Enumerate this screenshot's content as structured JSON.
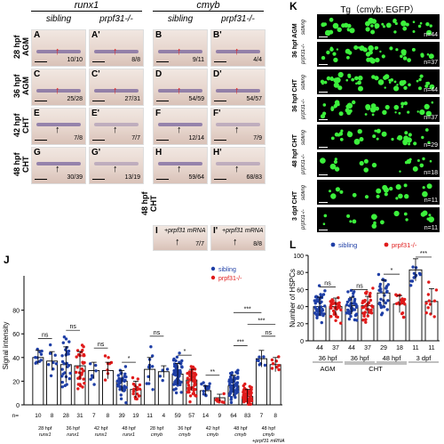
{
  "figure_letters": {
    "J": "J",
    "K": "K",
    "L": "L"
  },
  "top": {
    "gene_headers": [
      {
        "label": "runx1"
      },
      {
        "label": "cmyb"
      }
    ],
    "col_headers": [
      "sibling",
      "prpf31-/-",
      "sibling",
      "prpf31-/-"
    ],
    "row_labels": [
      "28 hpf AGM",
      "36 hpf AGM",
      "42 hpf CHT",
      "48 hpf CHT",
      "48 hpf CHT"
    ],
    "panels": [
      {
        "letter": "A",
        "count": "10/10",
        "arrow": "red"
      },
      {
        "letter": "A'",
        "count": "8/8",
        "arrow": "red"
      },
      {
        "letter": "B",
        "count": "9/11",
        "arrow": "red"
      },
      {
        "letter": "B'",
        "count": "4/4",
        "arrow": "red"
      },
      {
        "letter": "C",
        "count": "25/28",
        "arrow": "red"
      },
      {
        "letter": "C'",
        "count": "27/31",
        "arrow": "red"
      },
      {
        "letter": "D",
        "count": "54/59",
        "arrow": "red"
      },
      {
        "letter": "D'",
        "count": "54/57",
        "arrow": "red"
      },
      {
        "letter": "E",
        "count": "7/8",
        "arrow": "black"
      },
      {
        "letter": "E'",
        "count": "7/7",
        "arrow": "black"
      },
      {
        "letter": "F",
        "count": "12/14",
        "arrow": "black"
      },
      {
        "letter": "F'",
        "count": "7/9",
        "arrow": "black"
      },
      {
        "letter": "G",
        "count": "30/39",
        "arrow": "black"
      },
      {
        "letter": "G'",
        "count": "13/19",
        "arrow": "black"
      },
      {
        "letter": "H",
        "count": "59/64",
        "arrow": "black"
      },
      {
        "letter": "H'",
        "count": "68/83",
        "arrow": "black"
      }
    ],
    "rescue_panels": [
      {
        "letter": "I",
        "label": "+prpf31 mRNA",
        "count": "7/7"
      },
      {
        "letter": "I'",
        "label": "+prpf31 mRNA",
        "count": "8/8"
      }
    ]
  },
  "k_panel": {
    "title": "Tg（cmyb: EGFP）",
    "groups": [
      "36 hpf AGM",
      "36 hpf CHT",
      "48 hpf CHT",
      "3 dpf CHT"
    ],
    "genotypes": [
      "sibling",
      "prpf31-/-"
    ],
    "counts": [
      "n=44",
      "n=37",
      "n=44",
      "n=37",
      "n=29",
      "n=18",
      "n=11",
      "n=11"
    ]
  },
  "colors": {
    "sibling": "#1f3fa6",
    "mutant": "#e01b1b",
    "bar": "#000000"
  },
  "chart_data": [
    {
      "id": "J",
      "type": "bar",
      "ylabel": "Signal intensity",
      "ylim": [
        0,
        100
      ],
      "yticks": [
        0,
        20,
        40,
        60,
        80
      ],
      "legend": [
        {
          "name": "sibling",
          "color": "#1f3fa6"
        },
        {
          "name": "prpf31-/-",
          "color": "#e01b1b"
        }
      ],
      "legend_position": "top-right",
      "n_prefix": "n=",
      "groups": [
        {
          "label": "28 hpf runx1",
          "n": 10,
          "mean": 40,
          "sd": 6,
          "color": "sib"
        },
        {
          "label": "28 hpf runx1",
          "n": 8,
          "mean": 37,
          "sd": 8,
          "color": "sib"
        },
        {
          "label": "36 hpf runx1",
          "n": 28,
          "mean": 34,
          "sd": 15,
          "color": "sib"
        },
        {
          "label": "36 hpf runx1",
          "n": 31,
          "mean": 33,
          "sd": 12,
          "color": "mut"
        },
        {
          "label": "42 hpf runx1",
          "n": 7,
          "mean": 29,
          "sd": 7,
          "color": "sib"
        },
        {
          "label": "42 hpf runx1",
          "n": 8,
          "mean": 29,
          "sd": 7,
          "color": "mut"
        },
        {
          "label": "48 hpf runx1",
          "n": 39,
          "mean": 20,
          "sd": 9,
          "color": "sib"
        },
        {
          "label": "48 hpf runx1",
          "n": 19,
          "mean": 13,
          "sd": 7,
          "color": "mut"
        },
        {
          "label": "28 hpf cmyb",
          "n": 11,
          "mean": 30,
          "sd": 10,
          "color": "sib"
        },
        {
          "label": "28 hpf cmyb",
          "n": 4,
          "mean": 28,
          "sd": 5,
          "color": "sib"
        },
        {
          "label": "36 hpf cmyb",
          "n": 59,
          "mean": 26,
          "sd": 9,
          "color": "sib"
        },
        {
          "label": "36 hpf cmyb",
          "n": 57,
          "mean": 21,
          "sd": 9,
          "color": "mut"
        },
        {
          "label": "42 hpf cmyb",
          "n": 14,
          "mean": 12,
          "sd": 4,
          "color": "sib"
        },
        {
          "label": "42 hpf cmyb",
          "n": 9,
          "mean": 6,
          "sd": 3,
          "color": "mut"
        },
        {
          "label": "48 hpf cmyb",
          "n": 64,
          "mean": 16,
          "sd": 9,
          "color": "sib"
        },
        {
          "label": "48 hpf cmyb",
          "n": 83,
          "mean": 7,
          "sd": 6,
          "color": "mut"
        },
        {
          "label": "48 hpf cmyb +prpf31 mRNA",
          "n": 7,
          "mean": 39,
          "sd": 7,
          "color": "sib"
        },
        {
          "label": "48 hpf cmyb +prpf31 mRNA",
          "n": 8,
          "mean": 34,
          "sd": 6,
          "color": "mut"
        }
      ],
      "xlabels": [
        {
          "l1": "28 hpf",
          "l2": "runx1"
        },
        {
          "l1": "36 hpf",
          "l2": "runx1"
        },
        {
          "l1": "42 hpf",
          "l2": "runx1"
        },
        {
          "l1": "48 hpf",
          "l2": "runx1"
        },
        {
          "l1": "28 hpf",
          "l2": "cmyb"
        },
        {
          "l1": "36 hpf",
          "l2": "cmyb"
        },
        {
          "l1": "42 hpf",
          "l2": "cmyb"
        },
        {
          "l1": "48 hpf",
          "l2": "cmyb"
        },
        {
          "l1": "48 hpf",
          "l2": "cmyb",
          "l3": "+prpf31 mRNA"
        }
      ],
      "significance": [
        "ns",
        "ns",
        "ns",
        "*",
        "ns",
        "*",
        "**",
        "***",
        "***",
        "***",
        "ns"
      ]
    },
    {
      "id": "L",
      "type": "bar",
      "ylabel": "Number of HSPCs",
      "ylim": [
        0,
        100
      ],
      "yticks": [
        0,
        20,
        40,
        60,
        80,
        100
      ],
      "legend": [
        {
          "name": "sibling",
          "color": "#1f3fa6"
        },
        {
          "name": "prpf31-/-",
          "color": "#e01b1b"
        }
      ],
      "legend_position": "top",
      "groups": [
        {
          "n": 44,
          "mean": 40,
          "sd": 11,
          "color": "sib"
        },
        {
          "n": 37,
          "mean": 40,
          "sd": 10,
          "color": "mut"
        },
        {
          "n": 44,
          "mean": 41,
          "sd": 10,
          "color": "sib"
        },
        {
          "n": 37,
          "mean": 41,
          "sd": 11,
          "color": "mut"
        },
        {
          "n": 29,
          "mean": 56,
          "sd": 15,
          "color": "sib"
        },
        {
          "n": 18,
          "mean": 43,
          "sd": 10,
          "color": "mut"
        },
        {
          "n": 11,
          "mean": 83,
          "sd": 13,
          "color": "sib"
        },
        {
          "n": 11,
          "mean": 46,
          "sd": 15,
          "color": "mut"
        }
      ],
      "xlabels": [
        "36 hpf",
        "36 hpf",
        "48 hpf",
        "3 dpf"
      ],
      "xlabels2": [
        "AGM",
        "CHT"
      ],
      "significance": [
        "ns",
        "ns",
        "*",
        "***"
      ]
    }
  ]
}
